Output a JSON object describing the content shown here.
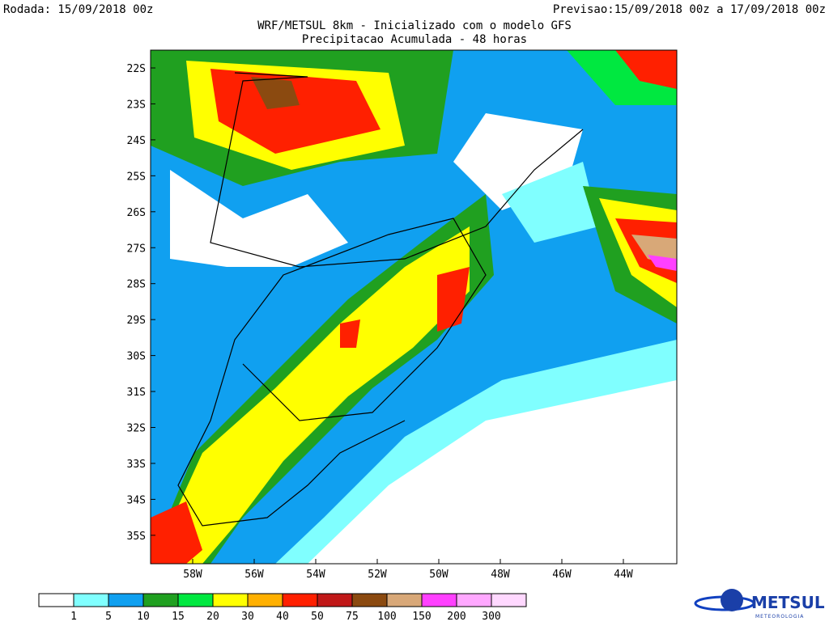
{
  "header": {
    "run": "Rodada: 15/09/2018 00z",
    "forecast": "Previsao:15/09/2018 00z a 17/09/2018 00z",
    "title": "WRF/METSUL 8km - Inicializado com o modelo GFS",
    "subtitle": "Precipitacao Acumulada - 48 horas"
  },
  "map": {
    "lat_labels": [
      "22S",
      "23S",
      "24S",
      "25S",
      "26S",
      "27S",
      "28S",
      "29S",
      "30S",
      "31S",
      "32S",
      "33S",
      "34S",
      "35S"
    ],
    "lon_labels": [
      "58W",
      "56W",
      "54W",
      "52W",
      "50W",
      "48W",
      "46W",
      "44W"
    ]
  },
  "colorbar": {
    "colors": [
      "#ffffff",
      "#80ffff",
      "#10a0f0",
      "#20a020",
      "#00e840",
      "#ffff00",
      "#ffb000",
      "#ff2000",
      "#c01818",
      "#8b4a10",
      "#d8a878",
      "#ff40ff",
      "#ffa8ff",
      "#ffd8ff"
    ],
    "labels": [
      "1",
      "5",
      "10",
      "15",
      "20",
      "30",
      "40",
      "50",
      "75",
      "100",
      "150",
      "200",
      "300"
    ]
  },
  "logo": {
    "name": "METSUL",
    "tagline": "METEOROLOGIA"
  }
}
